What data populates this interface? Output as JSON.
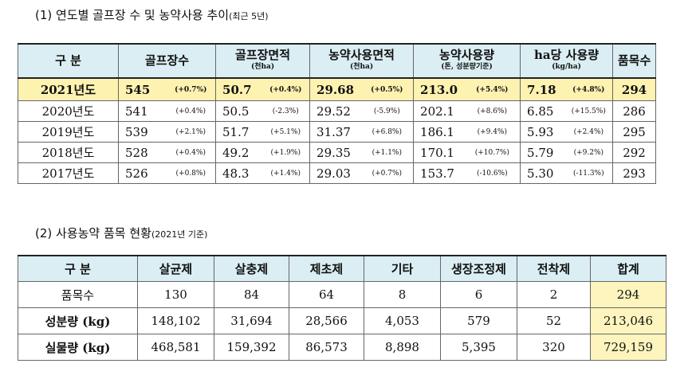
{
  "section1": {
    "title": "(1) 연도별 골프장 수 및 농약사용 추이",
    "note": "(최근 5년)",
    "table": {
      "header": [
        {
          "label": "구 분"
        },
        {
          "label": "골프장수"
        },
        {
          "label": "골프장면적",
          "sub": "(천ha)"
        },
        {
          "label": "농약사용면적",
          "sub": "(천ha)"
        },
        {
          "label": "농약사용량",
          "sub": "(톤, 성분량기준)"
        },
        {
          "label": "ha당 사용량",
          "sub": "(kg/ha)"
        },
        {
          "label": "품목수"
        }
      ],
      "rows": [
        [
          "2021년도",
          "545",
          "(+0.7%)",
          "50.7",
          "(+0.4%)",
          "29.68",
          "(+0.5%)",
          "213.0",
          "(+5.4%)",
          "7.18",
          "(+4.8%)",
          "294"
        ],
        [
          "2020년도",
          "541",
          "(+0.4%)",
          "50.5",
          "(-2.3%)",
          "29.52",
          "(-5.9%)",
          "202.1",
          "(+8.6%)",
          "6.85",
          "(+15.5%)",
          "286"
        ],
        [
          "2019년도",
          "539",
          "(+2.1%)",
          "51.7",
          "(+5.1%)",
          "31.37",
          "(+6.8%)",
          "186.1",
          "(+9.4%)",
          "5.93",
          "(+2.4%)",
          "295"
        ],
        [
          "2018년도",
          "528",
          "(+0.4%)",
          "49.2",
          "(+1.9%)",
          "29.35",
          "(+1.1%)",
          "170.1",
          "(+10.7%)",
          "5.79",
          "(+9.2%)",
          "292"
        ],
        [
          "2017년도",
          "526",
          "(+0.8%)",
          "48.3",
          "(+1.4%)",
          "29.03",
          "(+0.7%)",
          "153.7",
          "(-10.6%)",
          "5.30",
          "(-11.3%)",
          "293"
        ]
      ]
    }
  },
  "section2": {
    "title": "(2) 사용농약 품목 현황",
    "note": "(2021년 기준)",
    "table": {
      "header": [
        "구 분",
        "살균제",
        "살충제",
        "제초제",
        "기타",
        "생장조정제",
        "전착제",
        "합계"
      ],
      "rows": [
        [
          "품목수",
          "130",
          "84",
          "64",
          "8",
          "6",
          "2",
          "294"
        ],
        [
          "성분량 (kg)",
          "148,102",
          "31,694",
          "28,566",
          "4,053",
          "579",
          "52",
          "213,046"
        ],
        [
          "실물량 (kg)",
          "468,581",
          "159,392",
          "86,573",
          "8,898",
          "5,395",
          "320",
          "729,159"
        ]
      ]
    }
  }
}
